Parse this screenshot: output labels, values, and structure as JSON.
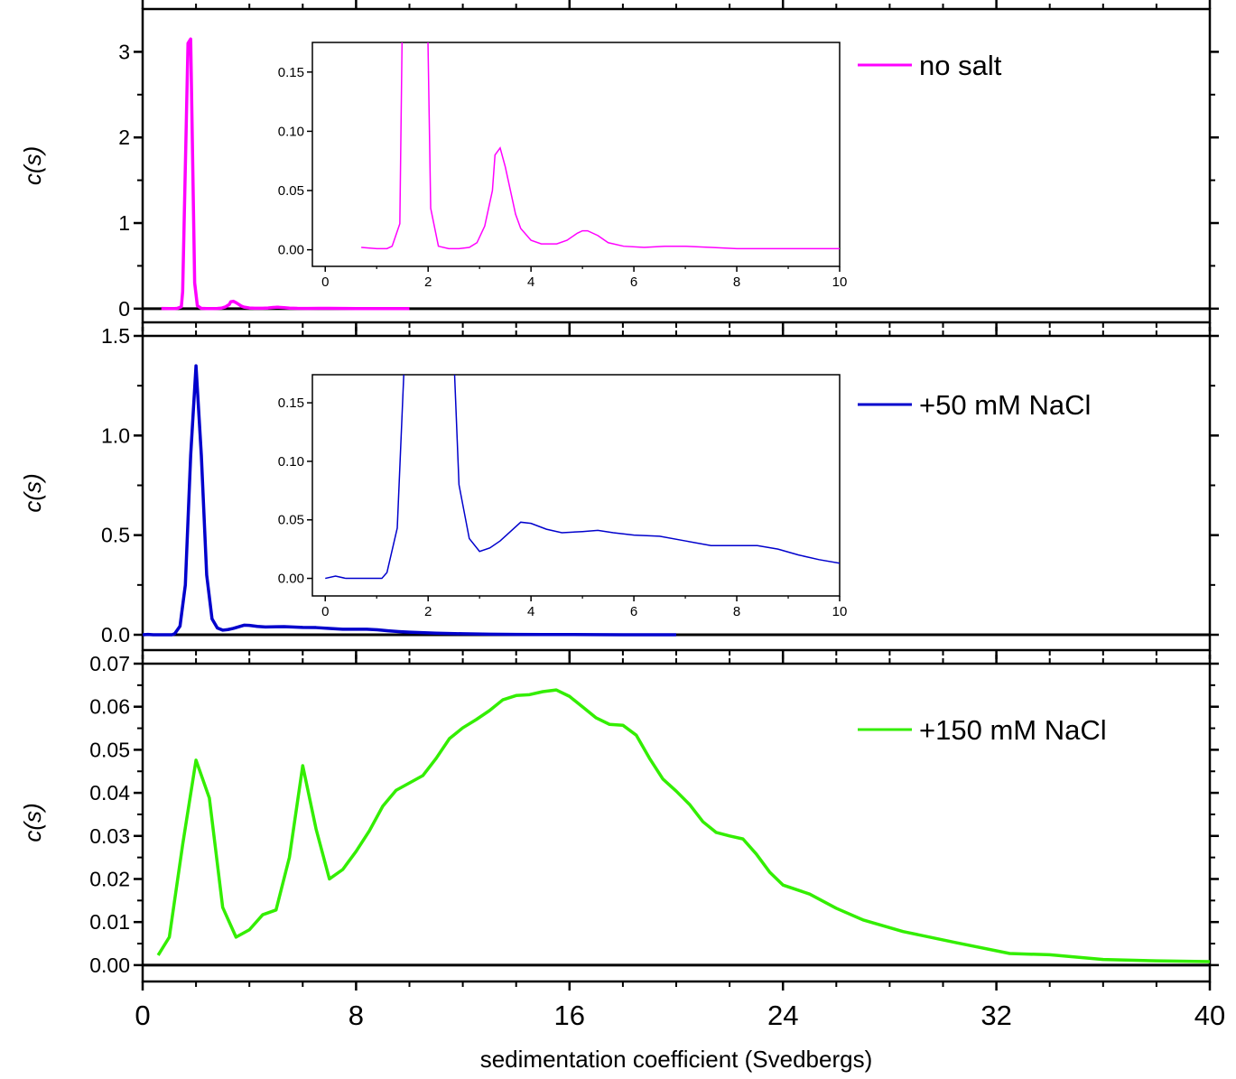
{
  "chart_data": [
    {
      "type": "line",
      "ylabel": "c(s)",
      "xlim": [
        0,
        40
      ],
      "ylim": [
        -0.16,
        3.5
      ],
      "yticks": [
        0,
        1,
        2,
        3
      ],
      "series": [
        {
          "name": "no salt",
          "color": "#ff00ff",
          "x": [
            0.7,
            1.0,
            1.2,
            1.3,
            1.45,
            1.5,
            1.7,
            1.8,
            1.95,
            2.05,
            2.2,
            2.4,
            2.6,
            2.8,
            2.95,
            3.1,
            3.25,
            3.3,
            3.4,
            3.5,
            3.6,
            3.7,
            3.8,
            4.0,
            4.2,
            4.5,
            4.7,
            4.9,
            5.0,
            5.1,
            5.3,
            5.5,
            5.8,
            6.2,
            6.6,
            7.0,
            7.5,
            8.0,
            9.0,
            10.0
          ],
          "values": [
            0.002,
            0.001,
            0.001,
            0.003,
            0.022,
            0.2,
            3.1,
            3.15,
            0.3,
            0.035,
            0.003,
            0.001,
            0.001,
            0.002,
            0.006,
            0.02,
            0.05,
            0.08,
            0.086,
            0.07,
            0.05,
            0.03,
            0.018,
            0.008,
            0.005,
            0.005,
            0.008,
            0.014,
            0.016,
            0.016,
            0.012,
            0.006,
            0.003,
            0.002,
            0.003,
            0.003,
            0.002,
            0.001,
            0.001,
            0.001
          ]
        }
      ],
      "inset": {
        "xlim": [
          -0.25,
          10
        ],
        "ylim": [
          -0.014,
          0.175
        ],
        "xticks": [
          0,
          2,
          4,
          6,
          8,
          10
        ],
        "yticks": [
          {
            "value": 0,
            "label": "0.00"
          },
          0.05,
          {
            "value": 0.1,
            "label": "0.10"
          },
          0.15
        ]
      }
    },
    {
      "type": "line",
      "ylabel": "c(s)",
      "xlim": [
        0,
        40
      ],
      "ylim": [
        -0.077,
        1.5
      ],
      "yticks": [
        {
          "value": 0,
          "label": "0.0"
        },
        0.5,
        {
          "value": 1,
          "label": "1.0"
        },
        1.5
      ],
      "series": [
        {
          "name": "+50 mM NaCl",
          "color": "#0000cc",
          "x": [
            0,
            0.2,
            0.4,
            0.8,
            1.1,
            1.2,
            1.4,
            1.6,
            1.8,
            2.0,
            2.2,
            2.4,
            2.6,
            2.8,
            3.0,
            3.2,
            3.4,
            3.6,
            3.8,
            4.0,
            4.3,
            4.6,
            5.0,
            5.3,
            5.6,
            6.0,
            6.5,
            7.0,
            7.5,
            8.0,
            8.4,
            8.8,
            9.2,
            9.6,
            10,
            11,
            12,
            13,
            14,
            15,
            16,
            17,
            18,
            19,
            20
          ],
          "values": [
            0,
            0.002,
            0,
            0,
            0,
            0.005,
            0.043,
            0.25,
            0.9,
            1.35,
            0.9,
            0.3,
            0.08,
            0.034,
            0.023,
            0.026,
            0.032,
            0.04,
            0.048,
            0.047,
            0.042,
            0.039,
            0.04,
            0.041,
            0.039,
            0.037,
            0.036,
            0.032,
            0.028,
            0.028,
            0.028,
            0.025,
            0.02,
            0.016,
            0.013,
            0.008,
            0.005,
            0.003,
            0.002,
            0.001,
            0.001,
            0.0005,
            0.0003,
            0.0002,
            0.0001
          ]
        }
      ],
      "inset": {
        "xlim": [
          -0.25,
          10
        ],
        "ylim": [
          -0.015,
          0.174
        ],
        "xticks": [
          0,
          2,
          4,
          6,
          8,
          10
        ],
        "yticks": [
          {
            "value": 0,
            "label": "0.00"
          },
          0.05,
          {
            "value": 0.1,
            "label": "0.10"
          },
          0.15
        ]
      }
    },
    {
      "type": "line",
      "ylabel": "c(s)",
      "xlabel": "sedimentation coefficient (Svedbergs)",
      "xlim": [
        0,
        40
      ],
      "ylim": [
        -0.0038,
        0.07
      ],
      "xticks": [
        0,
        8,
        16,
        24,
        32,
        40
      ],
      "yticks": [
        {
          "value": 0,
          "label": "0.00"
        },
        0.01,
        0.02,
        0.03,
        0.04,
        0.05,
        0.06,
        0.07
      ],
      "series": [
        {
          "name": "+150 mM NaCl",
          "color": "#33ee00",
          "x": [
            0.58,
            1.0,
            1.5,
            2.0,
            2.5,
            3.0,
            3.5,
            4.0,
            4.5,
            5.0,
            5.5,
            6.0,
            6.5,
            7.0,
            7.5,
            8.0,
            8.5,
            9.0,
            9.5,
            10.5,
            11.0,
            11.5,
            12.0,
            12.5,
            13.0,
            13.5,
            14.0,
            14.5,
            15.0,
            15.5,
            16.0,
            16.5,
            17.0,
            17.5,
            18.0,
            18.5,
            19.0,
            19.5,
            20.0,
            20.5,
            21.0,
            21.5,
            22.0,
            22.5,
            23.0,
            23.5,
            24.0,
            25.0,
            26.0,
            27.0,
            28.5,
            30.5,
            32.5,
            34.0,
            36.0,
            38.0,
            40.0
          ],
          "values": [
            0.0023,
            0.0065,
            0.028,
            0.0476,
            0.0388,
            0.0134,
            0.0065,
            0.0082,
            0.0117,
            0.0128,
            0.025,
            0.0463,
            0.0316,
            0.02,
            0.0222,
            0.0264,
            0.0312,
            0.0369,
            0.0406,
            0.044,
            0.048,
            0.0526,
            0.0551,
            0.057,
            0.0591,
            0.0616,
            0.0626,
            0.0628,
            0.0635,
            0.0639,
            0.0624,
            0.0599,
            0.0574,
            0.0559,
            0.0557,
            0.0534,
            0.048,
            0.0432,
            0.0404,
            0.0373,
            0.0333,
            0.0308,
            0.03,
            0.0293,
            0.0258,
            0.0216,
            0.0186,
            0.0165,
            0.0132,
            0.0105,
            0.0078,
            0.0052,
            0.0027,
            0.0024,
            0.0013,
            0.001,
            0.0008
          ]
        }
      ]
    }
  ]
}
